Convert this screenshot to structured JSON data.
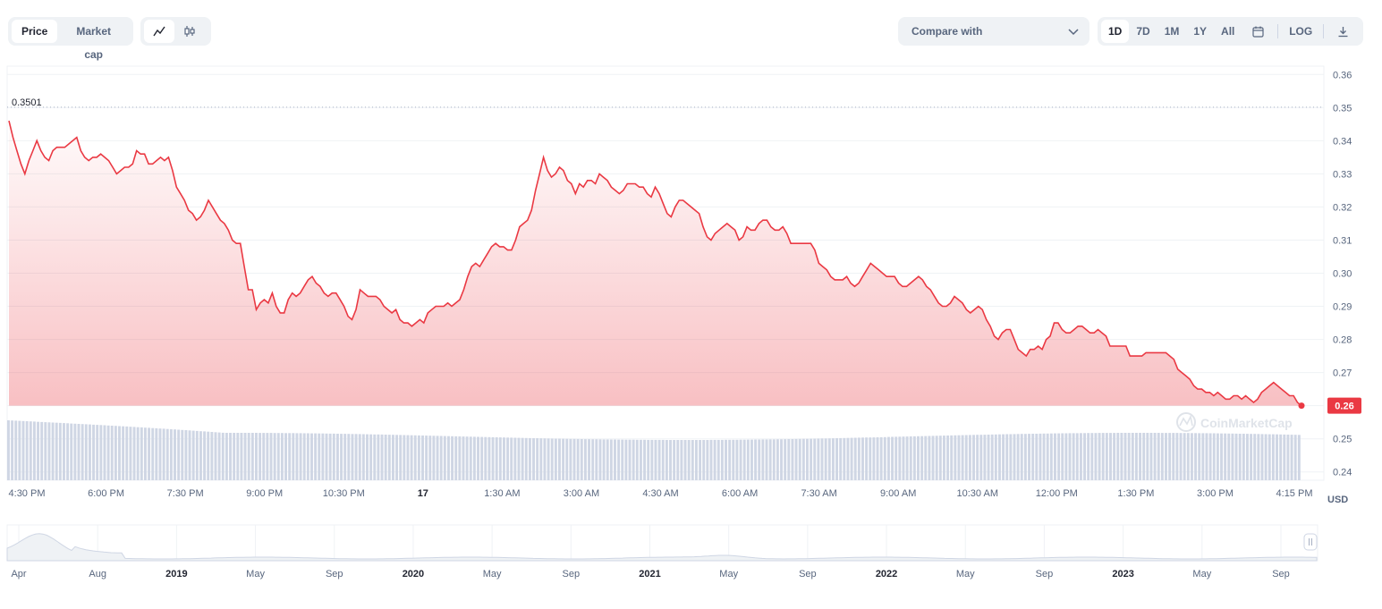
{
  "toolbar": {
    "type_tabs": [
      {
        "label": "Price",
        "active": true
      },
      {
        "label": "Market cap",
        "active": false
      }
    ],
    "view_icons": [
      "line-chart-icon",
      "candlestick-icon"
    ],
    "compare_label": "Compare with",
    "range_tabs": [
      {
        "label": "1D",
        "active": true
      },
      {
        "label": "7D",
        "active": false
      },
      {
        "label": "1M",
        "active": false
      },
      {
        "label": "1Y",
        "active": false
      },
      {
        "label": "All",
        "active": false
      }
    ],
    "calendar_icon": "calendar-icon",
    "log_label": "LOG",
    "download_icon": "download-icon"
  },
  "watermark": "CoinMarketCap",
  "colors": {
    "line": "#ea3943",
    "fill_top": "#ea3943",
    "volume": "#cfd6e4",
    "grid": "#eff2f5",
    "text": "#58667e"
  },
  "chart_data": {
    "type": "line",
    "ylabel": "USD",
    "ylim": [
      0.2375,
      0.3625
    ],
    "price_ylim": [
      0.255,
      0.36
    ],
    "yticks": [
      "0.36",
      "0.35",
      "0.34",
      "0.33",
      "0.32",
      "0.31",
      "0.30",
      "0.29",
      "0.28",
      "0.27",
      "0.26",
      "0.25",
      "0.24"
    ],
    "high_label": "0.3501",
    "current_label": "0.26",
    "xticks": [
      {
        "label": "4:30 PM",
        "bold": false
      },
      {
        "label": "6:00 PM",
        "bold": false
      },
      {
        "label": "7:30 PM",
        "bold": false
      },
      {
        "label": "9:00 PM",
        "bold": false
      },
      {
        "label": "10:30 PM",
        "bold": false
      },
      {
        "label": "17",
        "bold": true
      },
      {
        "label": "1:30 AM",
        "bold": false
      },
      {
        "label": "3:00 AM",
        "bold": false
      },
      {
        "label": "4:30 AM",
        "bold": false
      },
      {
        "label": "6:00 AM",
        "bold": false
      },
      {
        "label": "7:30 AM",
        "bold": false
      },
      {
        "label": "9:00 AM",
        "bold": false
      },
      {
        "label": "10:30 AM",
        "bold": false
      },
      {
        "label": "12:00 PM",
        "bold": false
      },
      {
        "label": "1:30 PM",
        "bold": false
      },
      {
        "label": "3:00 PM",
        "bold": false
      },
      {
        "label": "4:15 PM",
        "bold": false
      }
    ],
    "series": [
      {
        "values": [
          0.346,
          0.341,
          0.337,
          0.333,
          0.33,
          0.334,
          0.337,
          0.34,
          0.337,
          0.335,
          0.334,
          0.337,
          0.338,
          0.338,
          0.338,
          0.339,
          0.34,
          0.341,
          0.337,
          0.335,
          0.334,
          0.335,
          0.335,
          0.336,
          0.335,
          0.334,
          0.332,
          0.33,
          0.331,
          0.332,
          0.332,
          0.333,
          0.337,
          0.336,
          0.336,
          0.333,
          0.333,
          0.334,
          0.335,
          0.334,
          0.335,
          0.331,
          0.326,
          0.324,
          0.322,
          0.319,
          0.318,
          0.316,
          0.317,
          0.319,
          0.322,
          0.32,
          0.318,
          0.316,
          0.315,
          0.313,
          0.31,
          0.309,
          0.309,
          0.302,
          0.295,
          0.295,
          0.289,
          0.291,
          0.292,
          0.291,
          0.294,
          0.29,
          0.288,
          0.288,
          0.292,
          0.294,
          0.293,
          0.294,
          0.296,
          0.298,
          0.299,
          0.297,
          0.296,
          0.294,
          0.293,
          0.294,
          0.294,
          0.292,
          0.29,
          0.287,
          0.286,
          0.289,
          0.295,
          0.294,
          0.293,
          0.293,
          0.293,
          0.292,
          0.29,
          0.289,
          0.288,
          0.289,
          0.286,
          0.285,
          0.285,
          0.284,
          0.285,
          0.286,
          0.285,
          0.288,
          0.289,
          0.29,
          0.29,
          0.29,
          0.291,
          0.29,
          0.291,
          0.292,
          0.295,
          0.299,
          0.302,
          0.303,
          0.302,
          0.304,
          0.306,
          0.308,
          0.309,
          0.308,
          0.308,
          0.307,
          0.307,
          0.31,
          0.314,
          0.315,
          0.316,
          0.319,
          0.325,
          0.33,
          0.335,
          0.331,
          0.329,
          0.33,
          0.332,
          0.331,
          0.328,
          0.327,
          0.324,
          0.327,
          0.326,
          0.328,
          0.328,
          0.327,
          0.33,
          0.329,
          0.328,
          0.326,
          0.325,
          0.324,
          0.325,
          0.327,
          0.327,
          0.327,
          0.326,
          0.326,
          0.324,
          0.323,
          0.326,
          0.324,
          0.321,
          0.318,
          0.317,
          0.32,
          0.322,
          0.322,
          0.321,
          0.32,
          0.319,
          0.318,
          0.314,
          0.311,
          0.31,
          0.312,
          0.313,
          0.314,
          0.315,
          0.314,
          0.313,
          0.31,
          0.311,
          0.314,
          0.313,
          0.313,
          0.315,
          0.316,
          0.316,
          0.314,
          0.313,
          0.313,
          0.314,
          0.312,
          0.309,
          0.309,
          0.309,
          0.309,
          0.309,
          0.309,
          0.307,
          0.303,
          0.302,
          0.301,
          0.299,
          0.298,
          0.298,
          0.298,
          0.299,
          0.297,
          0.296,
          0.297,
          0.299,
          0.301,
          0.303,
          0.302,
          0.301,
          0.3,
          0.299,
          0.299,
          0.299,
          0.297,
          0.296,
          0.296,
          0.297,
          0.298,
          0.299,
          0.298,
          0.296,
          0.295,
          0.293,
          0.291,
          0.29,
          0.29,
          0.291,
          0.293,
          0.292,
          0.291,
          0.289,
          0.288,
          0.289,
          0.29,
          0.289,
          0.286,
          0.284,
          0.281,
          0.28,
          0.282,
          0.283,
          0.283,
          0.28,
          0.277,
          0.276,
          0.275,
          0.277,
          0.277,
          0.278,
          0.277,
          0.28,
          0.281,
          0.285,
          0.285,
          0.283,
          0.282,
          0.282,
          0.283,
          0.284,
          0.284,
          0.283,
          0.282,
          0.282,
          0.283,
          0.282,
          0.281,
          0.278,
          0.278,
          0.278,
          0.278,
          0.278,
          0.275,
          0.275,
          0.275,
          0.275,
          0.276,
          0.276,
          0.276,
          0.276,
          0.276,
          0.276,
          0.275,
          0.274,
          0.271,
          0.27,
          0.269,
          0.268,
          0.266,
          0.265,
          0.265,
          0.264,
          0.264,
          0.263,
          0.264,
          0.263,
          0.262,
          0.262,
          0.263,
          0.263,
          0.262,
          0.263,
          0.262,
          0.261,
          0.262,
          0.264,
          0.265,
          0.266,
          0.267,
          0.266,
          0.265,
          0.264,
          0.263,
          0.263,
          0.261,
          0.26
        ]
      }
    ],
    "volume_bars": 350,
    "grid": true,
    "navigator": {
      "labels": [
        {
          "label": "Apr",
          "bold": false
        },
        {
          "label": "Aug",
          "bold": false
        },
        {
          "label": "2019",
          "bold": true
        },
        {
          "label": "May",
          "bold": false
        },
        {
          "label": "Sep",
          "bold": false
        },
        {
          "label": "2020",
          "bold": true
        },
        {
          "label": "May",
          "bold": false
        },
        {
          "label": "Sep",
          "bold": false
        },
        {
          "label": "2021",
          "bold": true
        },
        {
          "label": "May",
          "bold": false
        },
        {
          "label": "Sep",
          "bold": false
        },
        {
          "label": "2022",
          "bold": true
        },
        {
          "label": "May",
          "bold": false
        },
        {
          "label": "Sep",
          "bold": false
        },
        {
          "label": "2023",
          "bold": true
        },
        {
          "label": "May",
          "bold": false
        },
        {
          "label": "Sep",
          "bold": false
        }
      ]
    }
  }
}
